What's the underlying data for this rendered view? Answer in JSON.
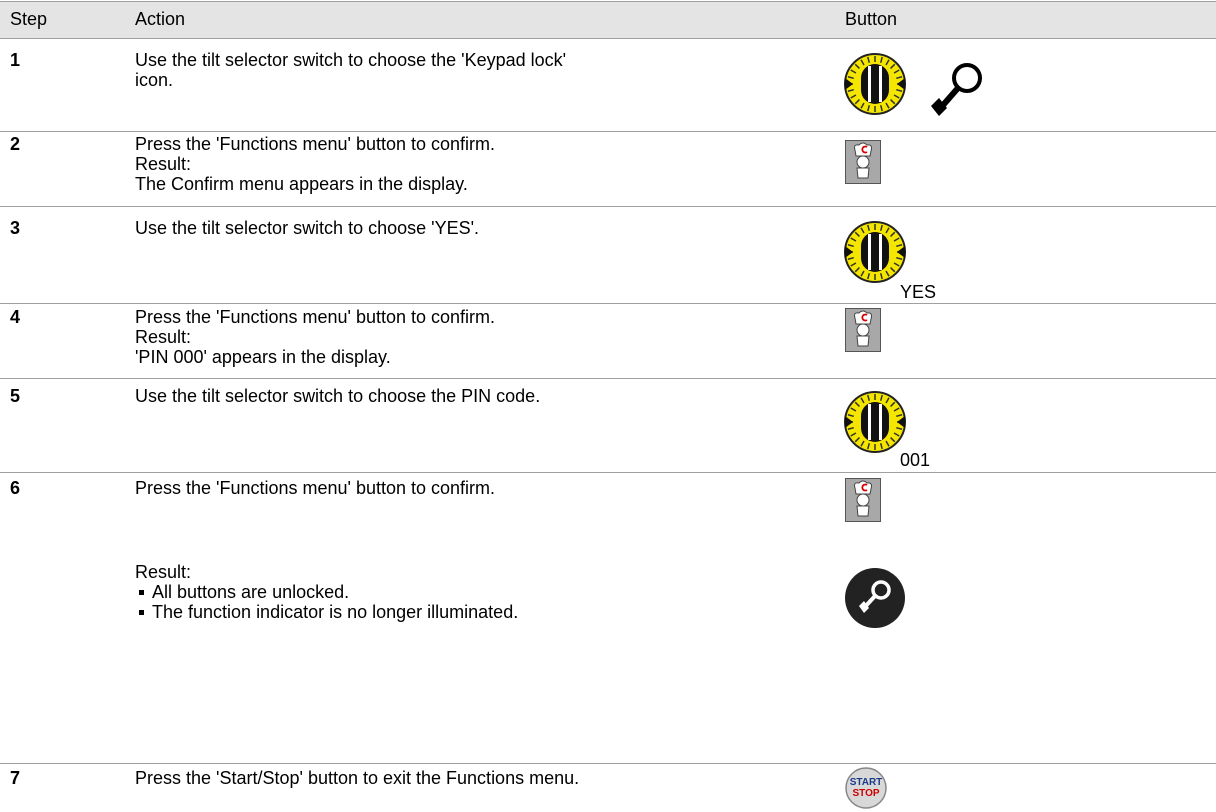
{
  "table": {
    "headers": [
      "Step",
      "Action",
      "Button"
    ],
    "rows": [
      {
        "step": "1",
        "action": [
          "Use the tilt selector switch to choose the 'Keypad lock'",
          "icon."
        ]
      },
      {
        "step": "2",
        "action": [
          "Press the 'Functions menu' button to confirm."
        ],
        "result_label": "Result:",
        "result": [
          "The Confirm menu appears in the display."
        ]
      },
      {
        "step": "3",
        "action": [
          "Use the tilt selector switch to choose 'YES'."
        ],
        "button_label": "YES"
      },
      {
        "step": "4",
        "action": [
          "Press the 'Functions menu' button to confirm."
        ],
        "result_label": "Result:",
        "result": [
          "'PIN 000' appears in the display."
        ]
      },
      {
        "step": "5",
        "action": [
          "Use the tilt selector switch to choose the PIN code."
        ],
        "button_label": "001"
      },
      {
        "step": "6",
        "action": [
          "Press the 'Functions menu' button to confirm."
        ],
        "result_label": "Result:",
        "result": [
          "All buttons are unlocked.",
          "The function indicator is no longer illuminated."
        ]
      },
      {
        "step": "7",
        "action": [
          "Press the 'Start/Stop' button to exit the Functions menu."
        ],
        "button_label": [
          "START",
          "STOP"
        ]
      }
    ]
  }
}
